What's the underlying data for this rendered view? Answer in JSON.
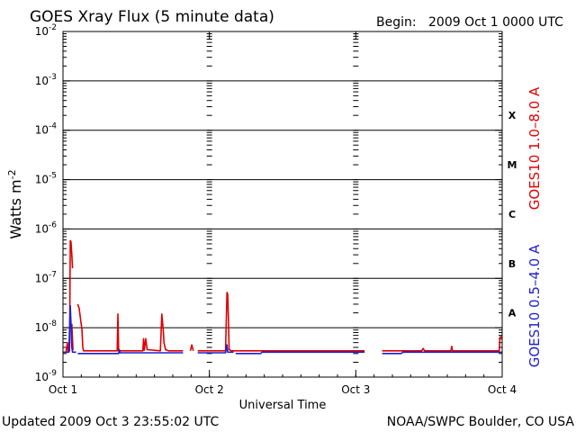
{
  "header": {
    "title": "GOES Xray Flux (5 minute data)",
    "begin_label": "Begin:",
    "begin_value": "2009 Oct 1 0000 UTC"
  },
  "footer": {
    "updated": "Updated 2009 Oct  3 23:55:02 UTC",
    "credit": "NOAA/SWPC Boulder, CO USA"
  },
  "colors": {
    "long_channel": "#e00000",
    "short_channel": "#2020d0",
    "axis": "#000000"
  },
  "chart_data": {
    "type": "line",
    "title": "GOES Xray Flux (5 minute data)",
    "xlabel": "Universal Time",
    "ylabel": "Watts m⁻²",
    "y_scale": "log",
    "ylim": [
      1e-09,
      0.01
    ],
    "xlim": [
      0,
      3
    ],
    "x_unit": "days since 2009 Oct 1 0000 UTC",
    "x_ticks": [
      {
        "value": 0,
        "label": "Oct 1"
      },
      {
        "value": 1,
        "label": "Oct 2"
      },
      {
        "value": 2,
        "label": "Oct 3"
      },
      {
        "value": 3,
        "label": "Oct 4"
      }
    ],
    "y_ticks": [
      {
        "value": 0.01,
        "base": "10",
        "exp": "-2"
      },
      {
        "value": 0.001,
        "base": "10",
        "exp": "-3"
      },
      {
        "value": 0.0001,
        "base": "10",
        "exp": "-4"
      },
      {
        "value": 1e-05,
        "base": "10",
        "exp": "-5"
      },
      {
        "value": 1e-06,
        "base": "10",
        "exp": "-6"
      },
      {
        "value": 1e-07,
        "base": "10",
        "exp": "-7"
      },
      {
        "value": 1e-08,
        "base": "10",
        "exp": "-8"
      },
      {
        "value": 1e-09,
        "base": "10",
        "exp": "-9"
      }
    ],
    "flare_classes": [
      {
        "label": "X",
        "value": 0.0002
      },
      {
        "label": "M",
        "value": 2e-05
      },
      {
        "label": "C",
        "value": 2e-06
      },
      {
        "label": "B",
        "value": 2e-07
      },
      {
        "label": "A",
        "value": 2e-08
      }
    ],
    "grid": true,
    "legend_position": "right-vertical",
    "series": [
      {
        "name": "GOES10 1.0–8.0 A",
        "color": "#e00000",
        "segments": [
          [
            [
              0,
              3.2e-09
            ],
            [
              0.02,
              3.2e-09
            ],
            [
              0.03,
              5e-09
            ],
            [
              0.035,
              3.2e-09
            ],
            [
              0.045,
              3.4e-09
            ],
            [
              0.05,
              5.8e-07
            ],
            [
              0.055,
              5.5e-07
            ],
            [
              0.06,
              3e-07
            ],
            [
              0.065,
              1.6e-07
            ]
          ],
          [
            [
              0.06,
              1.2e-08
            ],
            [
              0.068,
              3.5e-09
            ]
          ],
          [
            [
              0.1,
              3e-08
            ],
            [
              0.11,
              2.5e-08
            ],
            [
              0.12,
              1.5e-08
            ],
            [
              0.13,
              9e-09
            ],
            [
              0.135,
              4e-09
            ],
            [
              0.14,
              3.4e-09
            ],
            [
              0.37,
              3.4e-09
            ],
            [
              0.375,
              1.9e-08
            ],
            [
              0.38,
              3.4e-09
            ],
            [
              0.545,
              3.4e-09
            ],
            [
              0.55,
              6e-09
            ],
            [
              0.555,
              3.5e-09
            ],
            [
              0.565,
              6e-09
            ],
            [
              0.575,
              3.6e-09
            ],
            [
              0.665,
              3.4e-09
            ],
            [
              0.675,
              1.9e-08
            ],
            [
              0.685,
              9e-09
            ],
            [
              0.69,
              5e-09
            ],
            [
              0.7,
              3.6e-09
            ],
            [
              0.72,
              3.4e-09
            ],
            [
              0.82,
              3.4e-09
            ]
          ],
          [
            [
              0.87,
              3.4e-09
            ],
            [
              0.88,
              4.5e-09
            ],
            [
              0.89,
              3.4e-09
            ]
          ],
          [
            [
              0.92,
              3.4e-09
            ],
            [
              1.11,
              3.4e-09
            ],
            [
              1.12,
              5.2e-08
            ],
            [
              1.125,
              4.8e-08
            ],
            [
              1.13,
              1.5e-08
            ],
            [
              1.135,
              3.6e-09
            ],
            [
              1.15,
              3.4e-09
            ],
            [
              2.06,
              3.4e-09
            ]
          ],
          [
            [
              2.18,
              3.4e-09
            ],
            [
              2.45,
              3.4e-09
            ],
            [
              2.46,
              3.8e-09
            ],
            [
              2.47,
              3.4e-09
            ],
            [
              2.65,
              3.4e-09
            ],
            [
              2.655,
              4.2e-09
            ],
            [
              2.66,
              3.4e-09
            ],
            [
              2.98,
              3.4e-09
            ],
            [
              2.985,
              6.5e-09
            ],
            [
              3.0,
              6.5e-09
            ]
          ]
        ]
      },
      {
        "name": "GOES10 0.5–4.0 A",
        "color": "#2020d0",
        "segments": [
          [
            [
              0.01,
              3.2e-09
            ],
            [
              0.04,
              3.2e-09
            ],
            [
              0.05,
              2.8e-08
            ],
            [
              0.055,
              1.2e-08
            ],
            [
              0.06,
              4e-09
            ],
            [
              0.065,
              3.2e-09
            ],
            [
              0.09,
              3.2e-09
            ]
          ],
          [
            [
              0.1,
              3e-09
            ],
            [
              0.38,
              3e-09
            ],
            [
              0.385,
              3.6e-09
            ],
            [
              0.39,
              3.1e-09
            ],
            [
              0.82,
              3.1e-09
            ]
          ],
          [
            [
              0.92,
              3.1e-09
            ],
            [
              1.11,
              3.1e-09
            ],
            [
              1.12,
              4.5e-09
            ],
            [
              1.125,
              3.2e-09
            ],
            [
              1.165,
              3.2e-09
            ]
          ],
          [
            [
              1.18,
              3e-09
            ],
            [
              1.35,
              3e-09
            ],
            [
              1.36,
              3.2e-09
            ],
            [
              2.06,
              3.2e-09
            ]
          ],
          [
            [
              2.18,
              3e-09
            ],
            [
              2.31,
              3e-09
            ],
            [
              2.32,
              3.2e-09
            ],
            [
              3.0,
              3.2e-09
            ]
          ]
        ]
      }
    ]
  }
}
